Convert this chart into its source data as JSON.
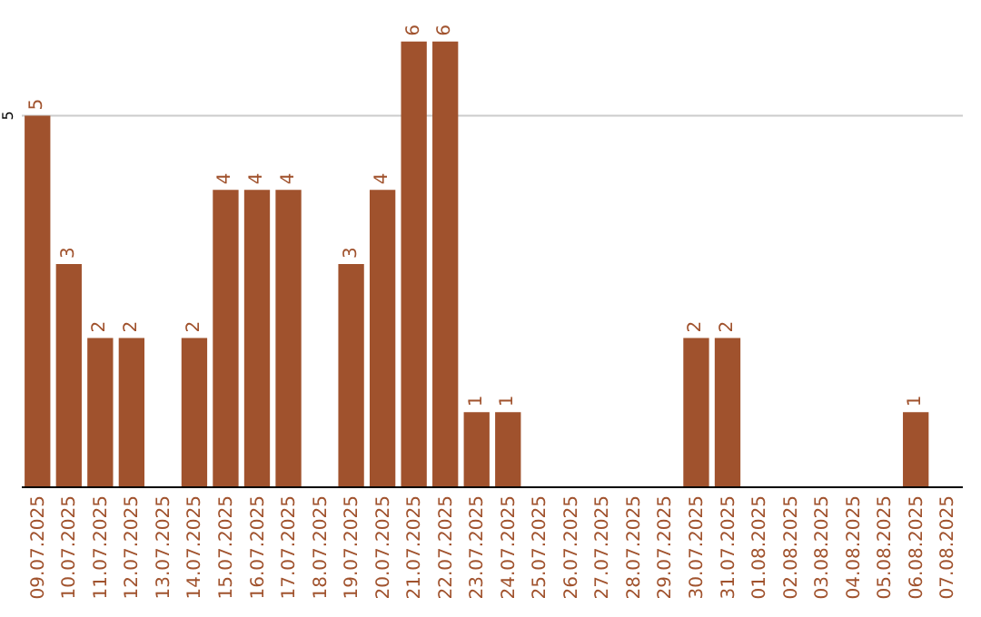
{
  "chart_data": {
    "type": "bar",
    "categories": [
      "09.07.2025",
      "10.07.2025",
      "11.07.2025",
      "12.07.2025",
      "13.07.2025",
      "14.07.2025",
      "15.07.2025",
      "16.07.2025",
      "17.07.2025",
      "18.07.2025",
      "19.07.2025",
      "20.07.2025",
      "21.07.2025",
      "22.07.2025",
      "23.07.2025",
      "24.07.2025",
      "25.07.2025",
      "26.07.2025",
      "27.07.2025",
      "28.07.2025",
      "29.07.2025",
      "30.07.2025",
      "31.07.2025",
      "01.08.2025",
      "02.08.2025",
      "03.08.2025",
      "04.08.2025",
      "05.08.2025",
      "06.08.2025",
      "07.08.2025"
    ],
    "values": [
      5,
      3,
      2,
      2,
      0,
      2,
      4,
      4,
      4,
      0,
      3,
      4,
      6,
      6,
      1,
      1,
      0,
      0,
      0,
      0,
      0,
      2,
      2,
      0,
      0,
      0,
      0,
      0,
      1,
      0
    ],
    "value_labels": [
      "5",
      "3",
      "2",
      "2",
      null,
      "2",
      "4",
      "4",
      "4",
      null,
      "3",
      "4",
      "6",
      "6",
      "1",
      "1",
      null,
      null,
      null,
      null,
      null,
      "2",
      "2",
      null,
      null,
      null,
      null,
      null,
      "1",
      null
    ],
    "color": "#a0522d",
    "ref_lines": [
      {
        "axis": "y",
        "value": 5,
        "label": "5",
        "color": "#cccccc"
      }
    ],
    "tick_labels": "x",
    "legend": false
  }
}
